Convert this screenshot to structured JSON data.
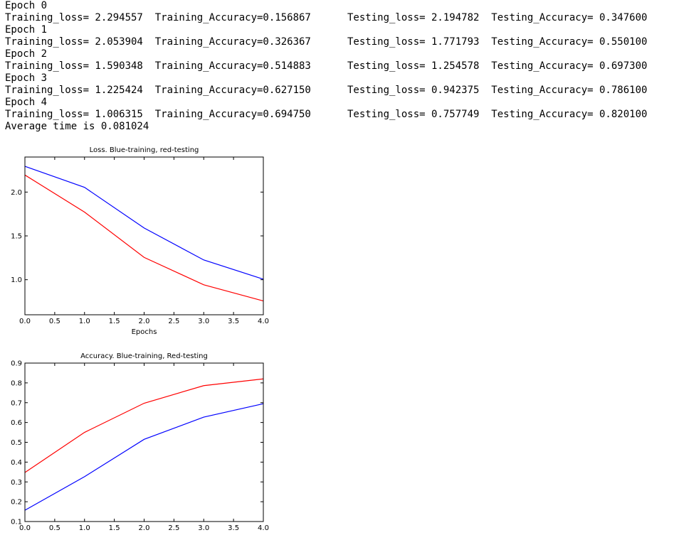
{
  "log": {
    "epochs": [
      {
        "label": "Epoch 0",
        "train": "Training_loss= 2.294557  Training_Accuracy=0.156867",
        "test": "Testing_loss= 2.194782  Testing_Accuracy= 0.347600"
      },
      {
        "label": "Epoch 1",
        "train": "Training_loss= 2.053904  Training_Accuracy=0.326367",
        "test": "Testing_loss= 1.771793  Testing_Accuracy= 0.550100"
      },
      {
        "label": "Epoch 2",
        "train": "Training_loss= 1.590348  Training_Accuracy=0.514883",
        "test": "Testing_loss= 1.254578  Testing_Accuracy= 0.697300"
      },
      {
        "label": "Epoch 3",
        "train": "Training_loss= 1.225424  Training_Accuracy=0.627150",
        "test": "Testing_loss= 0.942375  Testing_Accuracy= 0.786100"
      },
      {
        "label": "Epoch 4",
        "train": "Training_loss= 1.006315  Training_Accuracy=0.694750",
        "test": "Testing_loss= 0.757749  Testing_Accuracy= 0.820100"
      }
    ],
    "average": "Average time is 0.081024"
  },
  "chart_data": [
    {
      "type": "line",
      "title": "Loss. Blue-training, red-testing",
      "x_label": "Epochs",
      "x": [
        0,
        1,
        2,
        3,
        4
      ],
      "series": [
        {
          "color": "#0000ff",
          "values": [
            2.294557,
            2.053904,
            1.590348,
            1.225424,
            1.006315
          ]
        },
        {
          "color": "#ff0000",
          "values": [
            2.194782,
            1.771793,
            1.254578,
            0.942375,
            0.757749
          ]
        }
      ],
      "xlim": [
        0,
        4
      ],
      "xticks": [
        {
          "value": 0,
          "label": "0.0"
        },
        0.5,
        {
          "value": 1,
          "label": "1.0"
        },
        1.5,
        {
          "value": 2,
          "label": "2.0"
        },
        2.5,
        {
          "value": 3,
          "label": "3.0"
        },
        3.5,
        {
          "value": 4,
          "label": "4.0"
        }
      ],
      "ylim": [
        0.6,
        2.4
      ],
      "yticks": [
        {
          "value": 1,
          "label": "1.0"
        },
        1.5,
        {
          "value": 2,
          "label": "2.0"
        }
      ]
    },
    {
      "type": "line",
      "title": "Accuracy. Blue-training, Red-testing",
      "x": [
        0,
        1,
        2,
        3,
        4
      ],
      "series": [
        {
          "color": "#0000ff",
          "values": [
            0.156867,
            0.326367,
            0.514883,
            0.62715,
            0.69475
          ]
        },
        {
          "color": "#ff0000",
          "values": [
            0.3476,
            0.5501,
            0.6973,
            0.7861,
            0.8201
          ]
        }
      ],
      "xlim": [
        0,
        4
      ],
      "xticks": [
        {
          "value": 0,
          "label": "0.0"
        },
        0.5,
        {
          "value": 1,
          "label": "1.0"
        },
        1.5,
        {
          "value": 2,
          "label": "2.0"
        },
        2.5,
        {
          "value": 3,
          "label": "3.0"
        },
        3.5,
        {
          "value": 4,
          "label": "4.0"
        }
      ],
      "ylim": [
        0.1,
        0.9
      ],
      "yticks": [
        0.1,
        0.2,
        0.3,
        0.4,
        0.5,
        0.6,
        0.7,
        0.8,
        0.9
      ]
    }
  ]
}
